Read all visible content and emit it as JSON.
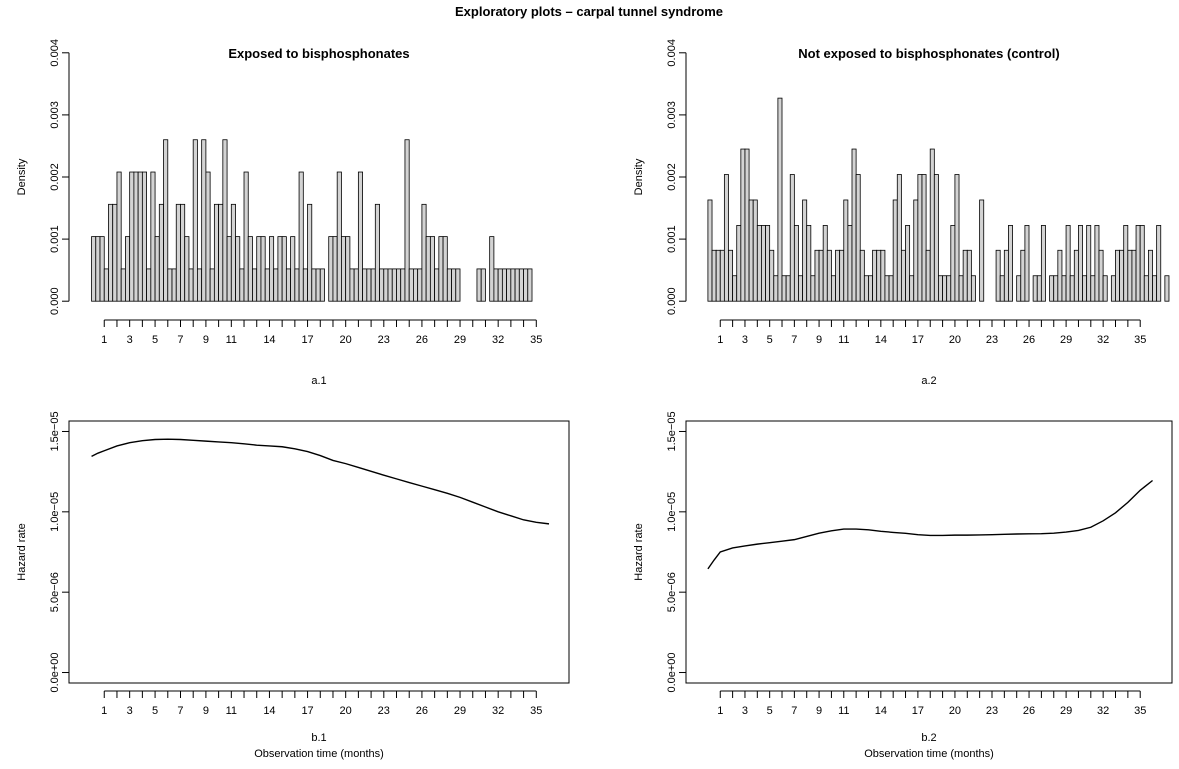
{
  "figure": {
    "title": "Exploratory plots – carpal tunnel syndrome"
  },
  "chart_data": [
    {
      "type": "bar",
      "title": "Exposed to bisphosphonates",
      "xlabel": "a.1",
      "ylabel": "Density",
      "ylim": [
        0,
        0.004
      ],
      "yticks": [
        "0.000",
        "0.001",
        "0.002",
        "0.003",
        "0.004"
      ],
      "xticks": [
        "1",
        "3",
        "5",
        "7",
        "9",
        "11",
        "14",
        "17",
        "20",
        "23",
        "26",
        "29",
        "32",
        "35"
      ],
      "x_domain": [
        -0.2,
        36
      ],
      "bin_width": 0.3333,
      "bin_start": 0,
      "values": [
        0.00104,
        0.00104,
        0.00104,
        0.00052,
        0.00156,
        0.00156,
        0.00208,
        0.00052,
        0.00104,
        0.00208,
        0.00208,
        0.00208,
        0.00208,
        0.00052,
        0.00208,
        0.00104,
        0.00156,
        0.0026,
        0.00052,
        0.00052,
        0.00156,
        0.00156,
        0.00104,
        0.00052,
        0.0026,
        0.00052,
        0.0026,
        0.00208,
        0.00052,
        0.00156,
        0.00156,
        0.0026,
        0.00104,
        0.00156,
        0.00104,
        0.00052,
        0.00208,
        0.00104,
        0.00052,
        0.00104,
        0.00104,
        0.00052,
        0.00104,
        0.00052,
        0.00104,
        0.00104,
        0.00052,
        0.00104,
        0.00052,
        0.00208,
        0.00052,
        0.00156,
        0.00052,
        0.00052,
        0.00052,
        0.0,
        0.00104,
        0.00104,
        0.00208,
        0.00104,
        0.00104,
        0.00052,
        0.00052,
        0.00208,
        0.00052,
        0.00052,
        0.00052,
        0.00156,
        0.00052,
        0.00052,
        0.00052,
        0.00052,
        0.00052,
        0.00052,
        0.0026,
        0.00052,
        0.00052,
        0.00052,
        0.00156,
        0.00104,
        0.00104,
        0.00052,
        0.00104,
        0.00104,
        0.00052,
        0.00052,
        0.00052,
        0.0,
        0.0,
        0.0,
        0.0,
        0.00052,
        0.00052,
        0.0,
        0.00104,
        0.00052,
        0.00052,
        0.00052,
        0.00052,
        0.00052,
        0.00052,
        0.00052,
        0.00052,
        0.00052
      ]
    },
    {
      "type": "bar",
      "title": "Not exposed to bisphosphonates (control)",
      "xlabel": "a.2",
      "ylabel": "Density",
      "ylim": [
        0,
        0.004
      ],
      "yticks": [
        "0.000",
        "0.001",
        "0.002",
        "0.003",
        "0.004"
      ],
      "xticks": [
        "1",
        "3",
        "5",
        "7",
        "9",
        "11",
        "14",
        "17",
        "20",
        "23",
        "26",
        "29",
        "32",
        "35"
      ],
      "x_domain": [
        -0.2,
        36
      ],
      "bin_width": 0.3333,
      "bin_start": 0,
      "values": [
        0.00163,
        0.00082,
        0.00082,
        0.00082,
        0.00204,
        0.00082,
        0.00041,
        0.00122,
        0.00245,
        0.00245,
        0.00163,
        0.00163,
        0.00122,
        0.00122,
        0.00122,
        0.00082,
        0.00041,
        0.00327,
        0.00041,
        0.00041,
        0.00204,
        0.00122,
        0.00041,
        0.00163,
        0.00122,
        0.00041,
        0.00082,
        0.00082,
        0.00122,
        0.00082,
        0.00041,
        0.00082,
        0.00082,
        0.00163,
        0.00122,
        0.00245,
        0.00204,
        0.00082,
        0.00041,
        0.00041,
        0.00082,
        0.00082,
        0.00082,
        0.00041,
        0.00041,
        0.00163,
        0.00204,
        0.00082,
        0.00122,
        0.00041,
        0.00163,
        0.00204,
        0.00204,
        0.00082,
        0.00245,
        0.00204,
        0.00041,
        0.00041,
        0.00041,
        0.00122,
        0.00204,
        0.00041,
        0.00082,
        0.00082,
        0.00041,
        0.0,
        0.00163,
        0.0,
        0.0,
        0.0,
        0.00082,
        0.00041,
        0.00082,
        0.00122,
        0.0,
        0.00041,
        0.00082,
        0.00122,
        0.0,
        0.00041,
        0.00041,
        0.00122,
        0.0,
        0.00041,
        0.00041,
        0.00082,
        0.00041,
        0.00122,
        0.00041,
        0.00082,
        0.00122,
        0.00041,
        0.00122,
        0.00041,
        0.00122,
        0.00082,
        0.00041,
        0.0,
        0.00041,
        0.00082,
        0.00082,
        0.00122,
        0.00082,
        0.00082,
        0.00122,
        0.00122,
        0.00041,
        0.00082,
        0.00041,
        0.00122,
        0.0,
        0.00041
      ]
    },
    {
      "type": "line",
      "title": "",
      "xlabel": "b.1",
      "xlabel2": "Observation time (months)",
      "ylabel": "Hazard rate",
      "ylim": [
        0,
        1.5e-05
      ],
      "yticks": [
        "0.0e+00",
        "5.0e−06",
        "1.0e−05",
        "1.5e−05"
      ],
      "xticks": [
        "1",
        "3",
        "5",
        "7",
        "9",
        "11",
        "14",
        "17",
        "20",
        "23",
        "26",
        "29",
        "32",
        "35"
      ],
      "x_domain": [
        -0.2,
        36
      ],
      "x": [
        0,
        0.5,
        1,
        2,
        3,
        4,
        5,
        6,
        7,
        8,
        9,
        10,
        11,
        12,
        13,
        14,
        15,
        16,
        17,
        18,
        19,
        20,
        21,
        22,
        23,
        24,
        25,
        26,
        27,
        28,
        29,
        30,
        31,
        32,
        33,
        34,
        35,
        36
      ],
      "y": [
        1.345e-05,
        1.365e-05,
        1.38e-05,
        1.41e-05,
        1.43e-05,
        1.443e-05,
        1.45e-05,
        1.452e-05,
        1.45e-05,
        1.445e-05,
        1.44e-05,
        1.435e-05,
        1.43e-05,
        1.423e-05,
        1.415e-05,
        1.41e-05,
        1.405e-05,
        1.392e-05,
        1.375e-05,
        1.35e-05,
        1.32e-05,
        1.3e-05,
        1.276e-05,
        1.252e-05,
        1.228e-05,
        1.205e-05,
        1.182e-05,
        1.16e-05,
        1.138e-05,
        1.115e-05,
        1.09e-05,
        1.06e-05,
        1.03e-05,
        1e-05,
        9.75e-06,
        9.5e-06,
        9.35e-06,
        9.25e-06
      ]
    },
    {
      "type": "line",
      "title": "",
      "xlabel": "b.2",
      "xlabel2": "Observation time (months)",
      "ylabel": "Hazard rate",
      "ylim": [
        0,
        1.5e-05
      ],
      "yticks": [
        "0.0e+00",
        "5.0e−06",
        "1.0e−05",
        "1.5e−05"
      ],
      "xticks": [
        "1",
        "3",
        "5",
        "7",
        "9",
        "11",
        "14",
        "17",
        "20",
        "23",
        "26",
        "29",
        "32",
        "35"
      ],
      "x_domain": [
        -0.2,
        36
      ],
      "x": [
        0,
        0.5,
        1,
        2,
        3,
        4,
        5,
        6,
        7,
        8,
        9,
        10,
        11,
        12,
        13,
        14,
        15,
        16,
        17,
        18,
        19,
        20,
        21,
        22,
        23,
        24,
        25,
        26,
        27,
        28,
        29,
        30,
        31,
        32,
        33,
        34,
        35,
        36
      ],
      "y": [
        6.45e-06,
        7e-06,
        7.5e-06,
        7.75e-06,
        7.88e-06,
        7.99e-06,
        8.08e-06,
        8.17e-06,
        8.27e-06,
        8.47e-06,
        8.67e-06,
        8.82e-06,
        8.93e-06,
        8.93e-06,
        8.88e-06,
        8.79e-06,
        8.72e-06,
        8.66e-06,
        8.58e-06,
        8.53e-06,
        8.53e-06,
        8.55e-06,
        8.55e-06,
        8.56e-06,
        8.58e-06,
        8.6e-06,
        8.62e-06,
        8.63e-06,
        8.64e-06,
        8.67e-06,
        8.74e-06,
        8.84e-06,
        9.04e-06,
        9.44e-06,
        9.94e-06,
        1.059e-05,
        1.134e-05,
        1.195e-05
      ]
    }
  ]
}
